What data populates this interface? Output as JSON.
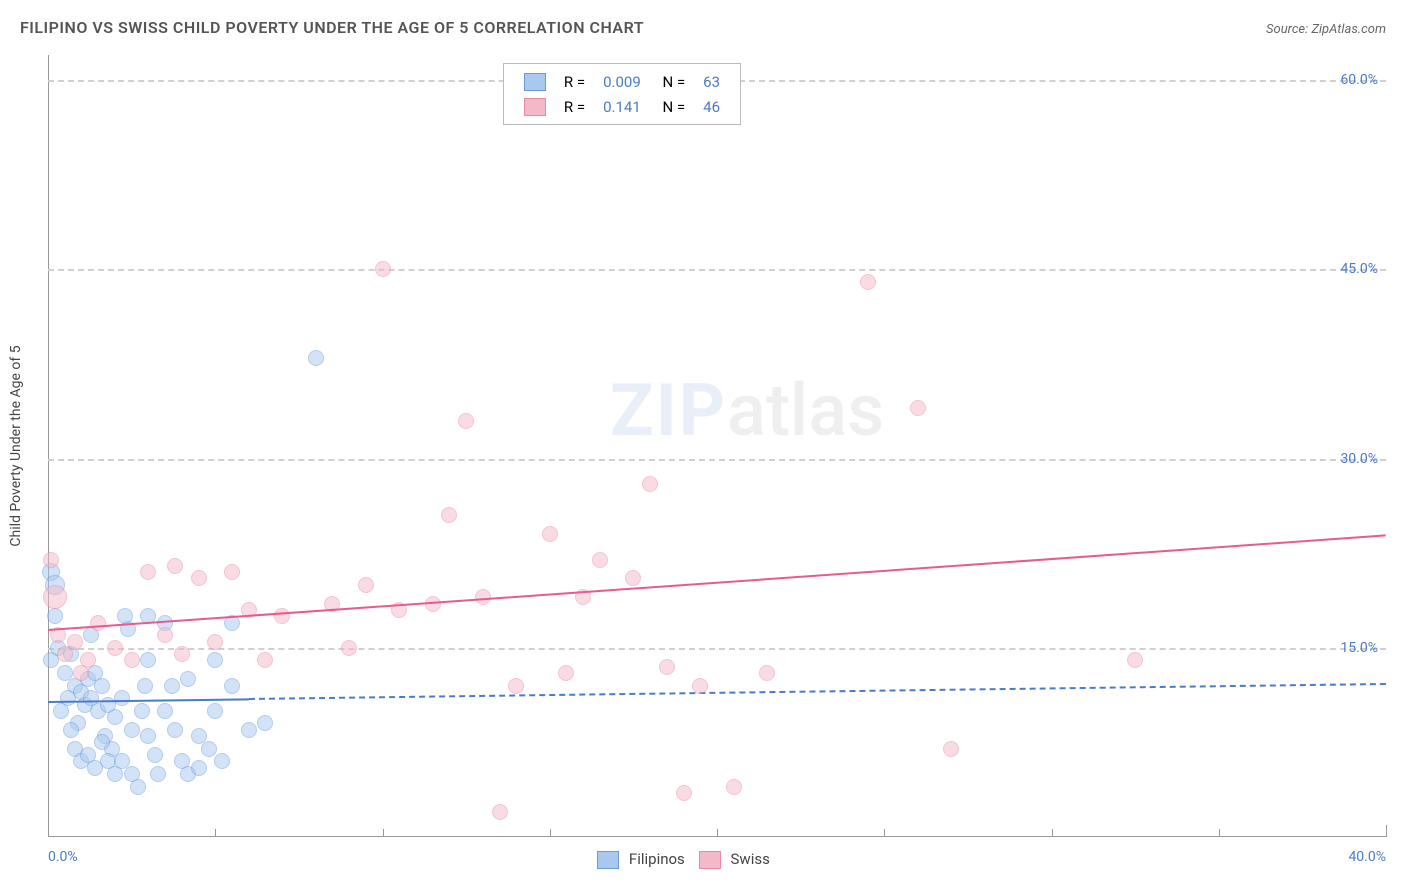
{
  "title": "FILIPINO VS SWISS CHILD POVERTY UNDER THE AGE OF 5 CORRELATION CHART",
  "source_label": "Source:",
  "source_name": "ZipAtlas.com",
  "ylabel": "Child Poverty Under the Age of 5",
  "watermark_zip": "ZIP",
  "watermark_atlas": "atlas",
  "chart": {
    "type": "scatter",
    "xlim": [
      0,
      40
    ],
    "ylim": [
      0,
      62
    ],
    "background_color": "#ffffff",
    "grid_color": "#d0d0d0",
    "text_color": "#444444",
    "tick_color": "#4a7bc8",
    "yticks": [
      {
        "v": 15,
        "l": "15.0%"
      },
      {
        "v": 30,
        "l": "30.0%"
      },
      {
        "v": 45,
        "l": "45.0%"
      },
      {
        "v": 60,
        "l": "60.0%"
      }
    ],
    "xticks_major": [
      {
        "v": 0,
        "l": "0.0%"
      },
      {
        "v": 40,
        "l": "40.0%"
      }
    ],
    "xticks_minor": [
      5,
      10,
      15,
      20,
      25,
      30,
      35
    ],
    "series": [
      {
        "name": "Filipinos",
        "fill": "#a8c8f0",
        "stroke": "#6a9ad8",
        "opacity": 0.5,
        "R": "0.009",
        "N": "63",
        "trend": {
          "x1": 0,
          "y1": 10.8,
          "x2": 40,
          "y2": 12.2,
          "color": "#4a7bc8",
          "solid_until": 6
        },
        "points": [
          {
            "x": 0.1,
            "y": 21,
            "r": 9
          },
          {
            "x": 0.2,
            "y": 20,
            "r": 10
          },
          {
            "x": 0.2,
            "y": 17.5,
            "r": 8
          },
          {
            "x": 0.1,
            "y": 14,
            "r": 8
          },
          {
            "x": 0.3,
            "y": 15,
            "r": 8
          },
          {
            "x": 0.5,
            "y": 13,
            "r": 8
          },
          {
            "x": 0.7,
            "y": 14.5,
            "r": 8
          },
          {
            "x": 0.8,
            "y": 12,
            "r": 8
          },
          {
            "x": 1.0,
            "y": 11.5,
            "r": 8
          },
          {
            "x": 1.1,
            "y": 10.5,
            "r": 8
          },
          {
            "x": 0.4,
            "y": 10,
            "r": 8
          },
          {
            "x": 0.6,
            "y": 11,
            "r": 8
          },
          {
            "x": 0.9,
            "y": 9,
            "r": 8
          },
          {
            "x": 1.2,
            "y": 12.5,
            "r": 8
          },
          {
            "x": 1.3,
            "y": 11,
            "r": 8
          },
          {
            "x": 1.5,
            "y": 10,
            "r": 8
          },
          {
            "x": 1.4,
            "y": 13,
            "r": 8
          },
          {
            "x": 1.6,
            "y": 12,
            "r": 8
          },
          {
            "x": 1.8,
            "y": 10.5,
            "r": 8
          },
          {
            "x": 1.7,
            "y": 8,
            "r": 8
          },
          {
            "x": 1.9,
            "y": 7,
            "r": 8
          },
          {
            "x": 2.0,
            "y": 9.5,
            "r": 8
          },
          {
            "x": 2.2,
            "y": 11,
            "r": 8
          },
          {
            "x": 2.4,
            "y": 16.5,
            "r": 8
          },
          {
            "x": 2.3,
            "y": 17.5,
            "r": 8
          },
          {
            "x": 1.3,
            "y": 16,
            "r": 8
          },
          {
            "x": 0.7,
            "y": 8.5,
            "r": 8
          },
          {
            "x": 0.8,
            "y": 7,
            "r": 8
          },
          {
            "x": 1.0,
            "y": 6,
            "r": 8
          },
          {
            "x": 1.2,
            "y": 6.5,
            "r": 8
          },
          {
            "x": 1.4,
            "y": 5.5,
            "r": 8
          },
          {
            "x": 1.6,
            "y": 7.5,
            "r": 8
          },
          {
            "x": 1.8,
            "y": 6,
            "r": 8
          },
          {
            "x": 2.0,
            "y": 5,
            "r": 8
          },
          {
            "x": 2.2,
            "y": 6,
            "r": 8
          },
          {
            "x": 2.5,
            "y": 5,
            "r": 8
          },
          {
            "x": 2.7,
            "y": 4,
            "r": 8
          },
          {
            "x": 2.5,
            "y": 8.5,
            "r": 8
          },
          {
            "x": 2.8,
            "y": 10,
            "r": 8
          },
          {
            "x": 2.9,
            "y": 12,
            "r": 8
          },
          {
            "x": 3.0,
            "y": 8,
            "r": 8
          },
          {
            "x": 3.2,
            "y": 6.5,
            "r": 8
          },
          {
            "x": 3.3,
            "y": 5,
            "r": 8
          },
          {
            "x": 3.5,
            "y": 10,
            "r": 8
          },
          {
            "x": 3.5,
            "y": 17,
            "r": 8
          },
          {
            "x": 3.0,
            "y": 17.5,
            "r": 8
          },
          {
            "x": 3.7,
            "y": 12,
            "r": 8
          },
          {
            "x": 3.8,
            "y": 8.5,
            "r": 8
          },
          {
            "x": 4.0,
            "y": 6,
            "r": 8
          },
          {
            "x": 4.2,
            "y": 5,
            "r": 8
          },
          {
            "x": 4.2,
            "y": 12.5,
            "r": 8
          },
          {
            "x": 4.5,
            "y": 8,
            "r": 8
          },
          {
            "x": 4.5,
            "y": 5.5,
            "r": 8
          },
          {
            "x": 4.8,
            "y": 7,
            "r": 8
          },
          {
            "x": 5.0,
            "y": 14,
            "r": 8
          },
          {
            "x": 5.0,
            "y": 10,
            "r": 8
          },
          {
            "x": 5.2,
            "y": 6,
            "r": 8
          },
          {
            "x": 5.5,
            "y": 12,
            "r": 8
          },
          {
            "x": 5.5,
            "y": 17,
            "r": 8
          },
          {
            "x": 6.0,
            "y": 8.5,
            "r": 8
          },
          {
            "x": 6.5,
            "y": 9,
            "r": 8
          },
          {
            "x": 3.0,
            "y": 14,
            "r": 8
          },
          {
            "x": 8.0,
            "y": 38,
            "r": 8
          }
        ]
      },
      {
        "name": "Swiss",
        "fill": "#f5b8c8",
        "stroke": "#e88aa5",
        "opacity": 0.5,
        "R": "0.141",
        "N": "46",
        "trend": {
          "x1": 0,
          "y1": 16.5,
          "x2": 40,
          "y2": 24,
          "color": "#e85a90",
          "solid_until": 40
        },
        "points": [
          {
            "x": 0.1,
            "y": 22,
            "r": 8
          },
          {
            "x": 0.2,
            "y": 19,
            "r": 12
          },
          {
            "x": 0.3,
            "y": 16,
            "r": 8
          },
          {
            "x": 0.5,
            "y": 14.5,
            "r": 8
          },
          {
            "x": 0.8,
            "y": 15.5,
            "r": 8
          },
          {
            "x": 1.0,
            "y": 13,
            "r": 8
          },
          {
            "x": 1.2,
            "y": 14,
            "r": 8
          },
          {
            "x": 1.5,
            "y": 17,
            "r": 8
          },
          {
            "x": 2.0,
            "y": 15,
            "r": 8
          },
          {
            "x": 2.5,
            "y": 14,
            "r": 8
          },
          {
            "x": 3.0,
            "y": 21,
            "r": 8
          },
          {
            "x": 3.5,
            "y": 16,
            "r": 8
          },
          {
            "x": 3.8,
            "y": 21.5,
            "r": 8
          },
          {
            "x": 4.0,
            "y": 14.5,
            "r": 8
          },
          {
            "x": 4.5,
            "y": 20.5,
            "r": 8
          },
          {
            "x": 5.0,
            "y": 15.5,
            "r": 8
          },
          {
            "x": 5.5,
            "y": 21,
            "r": 8
          },
          {
            "x": 6.0,
            "y": 18,
            "r": 8
          },
          {
            "x": 6.5,
            "y": 14,
            "r": 8
          },
          {
            "x": 7.0,
            "y": 17.5,
            "r": 8
          },
          {
            "x": 8.5,
            "y": 18.5,
            "r": 8
          },
          {
            "x": 9.0,
            "y": 15,
            "r": 8
          },
          {
            "x": 9.5,
            "y": 20,
            "r": 8
          },
          {
            "x": 10.0,
            "y": 45,
            "r": 8
          },
          {
            "x": 10.5,
            "y": 18,
            "r": 8
          },
          {
            "x": 11.5,
            "y": 18.5,
            "r": 8
          },
          {
            "x": 12.0,
            "y": 25.5,
            "r": 8
          },
          {
            "x": 12.5,
            "y": 33,
            "r": 8
          },
          {
            "x": 13.0,
            "y": 19,
            "r": 8
          },
          {
            "x": 13.5,
            "y": 2,
            "r": 8
          },
          {
            "x": 14.0,
            "y": 12,
            "r": 8
          },
          {
            "x": 15.0,
            "y": 24,
            "r": 8
          },
          {
            "x": 15.5,
            "y": 13,
            "r": 8
          },
          {
            "x": 16.0,
            "y": 19,
            "r": 8
          },
          {
            "x": 16.5,
            "y": 22,
            "r": 8
          },
          {
            "x": 17.5,
            "y": 20.5,
            "r": 8
          },
          {
            "x": 18.0,
            "y": 28,
            "r": 8
          },
          {
            "x": 19.0,
            "y": 3.5,
            "r": 8
          },
          {
            "x": 19.5,
            "y": 12,
            "r": 8
          },
          {
            "x": 20.5,
            "y": 4,
            "r": 8
          },
          {
            "x": 21.5,
            "y": 13,
            "r": 8
          },
          {
            "x": 24.5,
            "y": 44,
            "r": 8
          },
          {
            "x": 26.0,
            "y": 34,
            "r": 8
          },
          {
            "x": 27.0,
            "y": 7,
            "r": 8
          },
          {
            "x": 32.5,
            "y": 14,
            "r": 8
          },
          {
            "x": 18.5,
            "y": 13.5,
            "r": 8
          }
        ]
      }
    ],
    "legend_top": {
      "R_label": "R =",
      "N_label": "N ="
    },
    "legend_bottom": [
      {
        "name": "Filipinos"
      },
      {
        "name": "Swiss"
      }
    ]
  }
}
